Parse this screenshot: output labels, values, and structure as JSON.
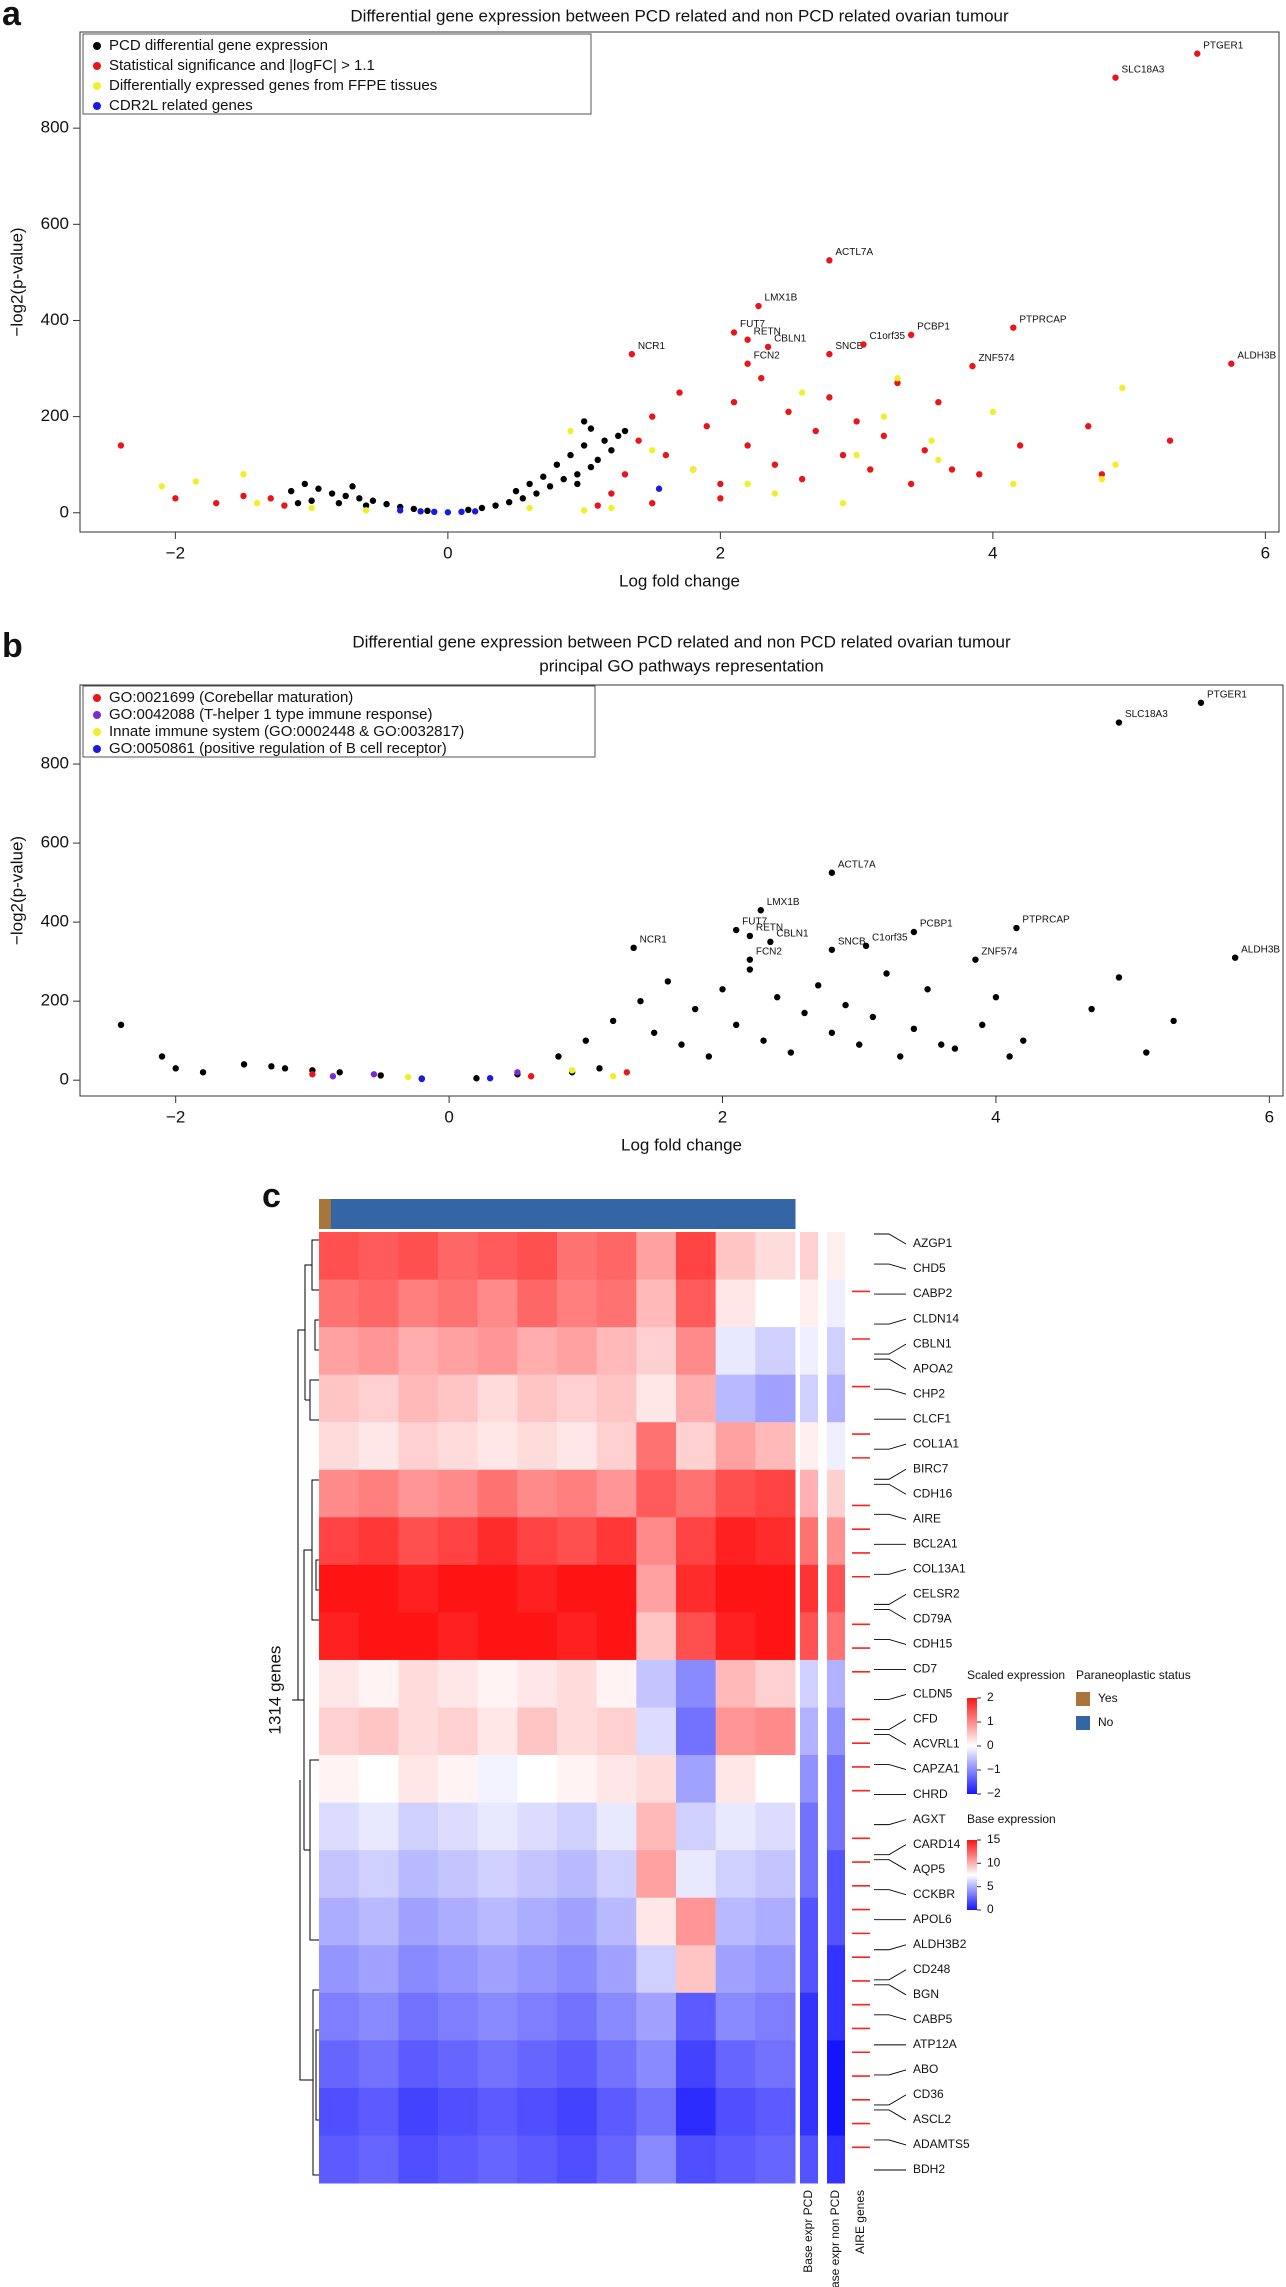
{
  "chart_data": [
    {
      "type": "scatter",
      "panel": "a",
      "title": "Differential gene expression between PCD related and non PCD related ovarian tumour",
      "xlabel": "Log fold change",
      "ylabel": "−log2(p-value)",
      "xlim": [
        -2.7,
        6.1
      ],
      "ylim": [
        -40,
        1000
      ],
      "xticks": [
        {
          "value": -2,
          "label": "−2"
        },
        0,
        2,
        4,
        6
      ],
      "yticks": [
        0,
        200,
        400,
        600,
        800
      ],
      "series": [
        {
          "name": "PCD differential gene expression",
          "color": "#000000",
          "x": [
            -1.15,
            -1.05,
            -0.95,
            -0.85,
            -0.75,
            -0.65,
            -0.55,
            -0.45,
            -0.35,
            -0.25,
            -0.15,
            0.15,
            0.25,
            0.35,
            0.45,
            0.55,
            0.65,
            0.75,
            0.85,
            0.95,
            1.05,
            1.1,
            -1.0,
            -0.8,
            -0.6,
            0.8,
            0.9,
            1.0,
            1.15,
            -1.1,
            0.6,
            0.7,
            1.2,
            1.25,
            1.3,
            0.95,
            1.05,
            0.5,
            -0.7,
            1.0
          ],
          "values": [
            45,
            60,
            50,
            40,
            35,
            30,
            25,
            18,
            12,
            8,
            4,
            6,
            10,
            15,
            22,
            30,
            40,
            55,
            70,
            80,
            95,
            110,
            25,
            20,
            15,
            100,
            120,
            140,
            150,
            20,
            60,
            75,
            130,
            160,
            170,
            60,
            175,
            45,
            55,
            190
          ]
        },
        {
          "name": "Statistical significance and |logFC| > 1.1",
          "color": "#e8151b",
          "x": [
            -2.4,
            -2.0,
            -1.7,
            -1.5,
            -1.3,
            -1.2,
            1.2,
            1.3,
            1.4,
            1.5,
            1.6,
            1.7,
            1.8,
            1.9,
            2.0,
            2.1,
            2.2,
            2.3,
            2.4,
            2.5,
            2.6,
            2.7,
            2.8,
            2.9,
            3.0,
            3.1,
            3.2,
            3.3,
            3.4,
            3.5,
            3.6,
            3.7,
            3.9,
            4.2,
            4.7,
            4.8,
            5.3,
            2.0,
            1.5,
            1.1
          ],
          "values": [
            140,
            30,
            20,
            35,
            30,
            15,
            40,
            80,
            150,
            200,
            120,
            250,
            90,
            180,
            60,
            230,
            140,
            280,
            100,
            210,
            70,
            170,
            240,
            120,
            190,
            90,
            160,
            270,
            60,
            130,
            230,
            90,
            80,
            140,
            180,
            80,
            150,
            30,
            20,
            15
          ]
        },
        {
          "name": "Differentially expressed genes from FFPE tissues",
          "color": "#f2ef2a",
          "x": [
            -2.1,
            -1.85,
            -1.5,
            -1.4,
            -1.0,
            -0.6,
            0.6,
            1.0,
            1.2,
            0.9,
            1.5,
            1.8,
            2.2,
            2.6,
            2.9,
            3.2,
            3.3,
            3.55,
            3.6,
            4.0,
            4.15,
            4.8,
            4.95,
            4.9,
            2.4,
            3.0
          ],
          "values": [
            55,
            65,
            80,
            20,
            10,
            5,
            10,
            5,
            10,
            170,
            130,
            90,
            60,
            250,
            20,
            200,
            280,
            150,
            110,
            210,
            60,
            70,
            260,
            100,
            40,
            120
          ]
        },
        {
          "name": "CDR2L related genes",
          "color": "#1a1ae0",
          "x": [
            -0.35,
            -0.2,
            -0.1,
            0,
            0.1,
            0.2,
            1.55
          ],
          "values": [
            5,
            3,
            2,
            1,
            2,
            3,
            50
          ]
        },
        {
          "color": "#e8151b",
          "x": [
            5.5,
            4.9,
            2.8,
            2.28,
            2.1,
            2.2,
            2.35,
            1.35,
            2.2,
            2.8,
            3.05,
            3.4,
            4.15,
            3.85,
            5.75
          ],
          "values": [
            955,
            905,
            525,
            430,
            375,
            360,
            345,
            330,
            310,
            330,
            350,
            370,
            385,
            305,
            310
          ],
          "labels": [
            "PTGER1",
            "SLC18A3",
            "ACTL7A",
            "LMX1B",
            "FUT7",
            "RETN",
            "CBLN1",
            "NCR1",
            "FCN2",
            "SNCB",
            "C1orf35",
            "PCBP1",
            "PTPRCAP",
            "ZNF574",
            "ALDH3B"
          ]
        }
      ]
    },
    {
      "type": "scatter",
      "panel": "b",
      "title": "Differential gene expression between PCD related and non PCD related ovarian tumour",
      "subtitle": "principal GO pathways representation",
      "xlabel": "Log fold change",
      "ylabel": "−log2(p-value)",
      "xlim": [
        -2.7,
        6.1
      ],
      "ylim": [
        -40,
        1000
      ],
      "xticks": [
        {
          "value": -2,
          "label": "−2"
        },
        0,
        2,
        4,
        6
      ],
      "yticks": [
        0,
        200,
        400,
        600,
        800
      ],
      "series": [
        {
          "color": "#000000",
          "x": [
            -2.4,
            -2.1,
            -2.0,
            -1.8,
            -1.5,
            -1.2,
            -1.0,
            -0.8,
            -0.5,
            -0.2,
            0.2,
            0.5,
            0.8,
            1.0,
            1.2,
            1.4,
            1.5,
            1.6,
            1.7,
            1.8,
            1.9,
            2.0,
            2.1,
            2.2,
            2.3,
            2.4,
            2.5,
            2.6,
            2.7,
            2.8,
            2.9,
            3.0,
            3.1,
            3.2,
            3.3,
            3.4,
            3.5,
            3.6,
            3.7,
            3.9,
            4.0,
            4.1,
            4.2,
            4.7,
            4.9,
            5.1,
            5.3,
            1.1,
            0.9,
            -1.3
          ],
          "values": [
            140,
            60,
            30,
            20,
            40,
            30,
            25,
            20,
            12,
            4,
            5,
            15,
            60,
            100,
            150,
            200,
            120,
            250,
            90,
            180,
            60,
            230,
            140,
            280,
            100,
            210,
            70,
            170,
            240,
            120,
            190,
            90,
            160,
            270,
            60,
            130,
            230,
            90,
            80,
            140,
            210,
            60,
            100,
            180,
            260,
            70,
            150,
            30,
            20,
            35
          ]
        },
        {
          "name": "GO:0021699 (Corebellar maturation)",
          "color": "#e8151b",
          "x": [
            -1.0,
            0.6,
            1.3
          ],
          "values": [
            15,
            10,
            20
          ]
        },
        {
          "name": "GO:0042088 (T-helper 1 type immune response)",
          "color": "#7a2bd0",
          "x": [
            -0.85,
            -0.55,
            0.5
          ],
          "values": [
            10,
            15,
            20
          ]
        },
        {
          "name": "Innate immune system (GO:0002448 & GO:0032817)",
          "color": "#f2ef2a",
          "x": [
            -0.3,
            0.9,
            1.2
          ],
          "values": [
            8,
            25,
            10
          ]
        },
        {
          "name": "GO:0050861 (positive regulation of B cell receptor)",
          "color": "#1a1ae0",
          "x": [
            0.3,
            -0.2
          ],
          "values": [
            5,
            3
          ]
        },
        {
          "color": "#000000",
          "x": [
            5.5,
            4.9,
            2.8,
            2.28,
            2.1,
            2.2,
            2.35,
            1.35,
            2.2,
            2.8,
            3.05,
            3.4,
            4.15,
            3.85,
            5.75
          ],
          "values": [
            955,
            905,
            525,
            430,
            380,
            365,
            350,
            335,
            305,
            330,
            340,
            375,
            385,
            305,
            310
          ],
          "labels": [
            "PTGER1",
            "SLC18A3",
            "ACTL7A",
            "LMX1B",
            "FUT7",
            "RETN",
            "CBLN1",
            "NCR1",
            "FCN2",
            "SNCB",
            "C1orf35",
            "PCBP1",
            "PTPRCAP",
            "ZNF574",
            "ALDH3B"
          ]
        }
      ]
    },
    {
      "type": "heatmap",
      "panel": "c",
      "row_title": "1314 genes",
      "matrix": [
        [
          1.5,
          1.4,
          1.5,
          1.3,
          1.4,
          1.5,
          1.2,
          1.3,
          0.8,
          1.6,
          0.5,
          0.3
        ],
        [
          1.2,
          1.3,
          1.1,
          1.2,
          1.0,
          1.3,
          1.1,
          1.2,
          0.6,
          1.4,
          0.2,
          0
        ],
        [
          0.8,
          0.9,
          0.7,
          0.8,
          0.9,
          0.7,
          0.8,
          0.6,
          0.4,
          1.0,
          -0.2,
          -0.4
        ],
        [
          0.5,
          0.4,
          0.6,
          0.5,
          0.3,
          0.5,
          0.4,
          0.5,
          0.2,
          0.7,
          -0.6,
          -0.8
        ],
        [
          0.3,
          0.2,
          0.4,
          0.3,
          0.2,
          0.3,
          0.2,
          0.4,
          1.2,
          0.4,
          0.8,
          0.6
        ],
        [
          1.0,
          1.1,
          0.9,
          1.0,
          1.2,
          1.0,
          1.1,
          0.9,
          1.4,
          1.2,
          1.5,
          1.6
        ],
        [
          1.6,
          1.7,
          1.5,
          1.6,
          1.8,
          1.6,
          1.5,
          1.7,
          1.0,
          1.6,
          1.9,
          1.8
        ],
        [
          2.0,
          2.0,
          1.9,
          2.0,
          2.0,
          1.9,
          2.0,
          2.0,
          0.8,
          1.8,
          2.0,
          2.0
        ],
        [
          1.9,
          2.0,
          2.0,
          1.9,
          2.0,
          2.0,
          1.9,
          2.0,
          0.5,
          1.5,
          1.9,
          2.0
        ],
        [
          0.2,
          0.1,
          0.3,
          0.2,
          0.1,
          0.2,
          0.3,
          0.1,
          -0.5,
          -1.0,
          0.6,
          0.4
        ],
        [
          0.4,
          0.5,
          0.3,
          0.4,
          0.2,
          0.5,
          0.3,
          0.4,
          -0.3,
          -1.2,
          0.9,
          1.0
        ],
        [
          0.1,
          0,
          0.2,
          0.1,
          -0.1,
          0,
          0.1,
          0.2,
          0.3,
          -0.8,
          0.2,
          0
        ],
        [
          -0.3,
          -0.2,
          -0.4,
          -0.3,
          -0.2,
          -0.3,
          -0.4,
          -0.2,
          0.6,
          -0.4,
          -0.2,
          -0.3
        ],
        [
          -0.5,
          -0.4,
          -0.6,
          -0.5,
          -0.4,
          -0.5,
          -0.6,
          -0.4,
          0.8,
          -0.2,
          -0.4,
          -0.5
        ],
        [
          -0.7,
          -0.6,
          -0.8,
          -0.7,
          -0.6,
          -0.7,
          -0.8,
          -0.6,
          0.2,
          0.9,
          -0.6,
          -0.7
        ],
        [
          -0.9,
          -0.8,
          -1.0,
          -0.9,
          -0.8,
          -0.9,
          -1.0,
          -0.8,
          -0.4,
          0.5,
          -0.8,
          -0.9
        ],
        [
          -1.1,
          -1.0,
          -1.2,
          -1.1,
          -1.0,
          -1.1,
          -1.2,
          -1.0,
          -0.8,
          -1.4,
          -1.0,
          -1.1
        ],
        [
          -1.3,
          -1.2,
          -1.4,
          -1.3,
          -1.2,
          -1.3,
          -1.4,
          -1.2,
          -1.0,
          -1.6,
          -1.3,
          -1.2
        ],
        [
          -1.5,
          -1.4,
          -1.6,
          -1.5,
          -1.4,
          -1.5,
          -1.6,
          -1.4,
          -1.2,
          -1.8,
          -1.5,
          -1.4
        ],
        [
          -1.4,
          -1.3,
          -1.5,
          -1.4,
          -1.3,
          -1.4,
          -1.5,
          -1.3,
          -1.0,
          -1.5,
          -1.4,
          -1.3
        ]
      ],
      "scale_title": "Scaled expression",
      "scale_range": [
        -2,
        2
      ],
      "scale_ticks": [
        {
          "value": 2,
          "label": "2"
        },
        1,
        0,
        {
          "value": -1,
          "label": "−1"
        },
        {
          "value": -2,
          "label": "−2"
        }
      ],
      "scale_colors": [
        "#1414ff",
        "#ffffff",
        "#ff1414"
      ],
      "base_title": "Base expression",
      "base_range": [
        0,
        15
      ],
      "base_ticks": [
        15,
        10,
        5,
        0
      ],
      "base_pcd": [
        9,
        8,
        7,
        6,
        8,
        10,
        12,
        14,
        13,
        6,
        5,
        4,
        3,
        3,
        2,
        2,
        1,
        1,
        1,
        2
      ],
      "base_non_pcd": [
        8,
        7,
        6,
        5,
        7,
        9,
        11,
        13,
        12,
        5,
        4,
        3,
        3,
        2,
        2,
        1,
        1,
        0,
        0,
        1
      ],
      "column_labels": [
        "Base expr PCD",
        "Base expr non PCD",
        "AIRE genes"
      ],
      "aire_genes": [
        0,
        0,
        1,
        0,
        1,
        0,
        1,
        0,
        1,
        1,
        0,
        1,
        1,
        1,
        1,
        0,
        1,
        1,
        1,
        0,
        1,
        1,
        1,
        1,
        0,
        1,
        1,
        1,
        1,
        1,
        1,
        1,
        1,
        1,
        1,
        1,
        1,
        1,
        1,
        0
      ],
      "aire_color": "#ff2020",
      "status_title": "Paraneoplastic status",
      "status_categories": [
        "Yes",
        "No"
      ],
      "status_colors": [
        "#a8753a",
        "#3465a4"
      ],
      "status": [
        "Yes",
        "No",
        "No",
        "No",
        "No",
        "No",
        "No",
        "No",
        "No",
        "No",
        "No",
        "No",
        "No",
        "No",
        "No",
        "No",
        "No",
        "No",
        "No",
        "No",
        "No",
        "No",
        "No",
        "No",
        "No",
        "No",
        "No",
        "No",
        "No",
        "No",
        "No",
        "No",
        "No",
        "No",
        "No",
        "No",
        "No",
        "No",
        "No",
        "No"
      ],
      "genes": [
        "AZGP1",
        "CHD5",
        "CABP2",
        "CLDN14",
        "CBLN1",
        "APOA2",
        "CHP2",
        "CLCF1",
        "COL1A1",
        "BIRC7",
        "CDH16",
        "AIRE",
        "BCL2A1",
        "COL13A1",
        "CELSR2",
        "CD79A",
        "CDH15",
        "CD7",
        "CLDN5",
        "CFD",
        "ACVRL1",
        "CAPZA1",
        "CHRD",
        "AGXT",
        "CARD14",
        "AQP5",
        "CCKBR",
        "APOL6",
        "ALDH3B2",
        "CD248",
        "BGN",
        "CABP5",
        "ATP12A",
        "ABO",
        "CD36",
        "ASCL2",
        "ADAMTS5",
        "BDH2"
      ]
    }
  ]
}
